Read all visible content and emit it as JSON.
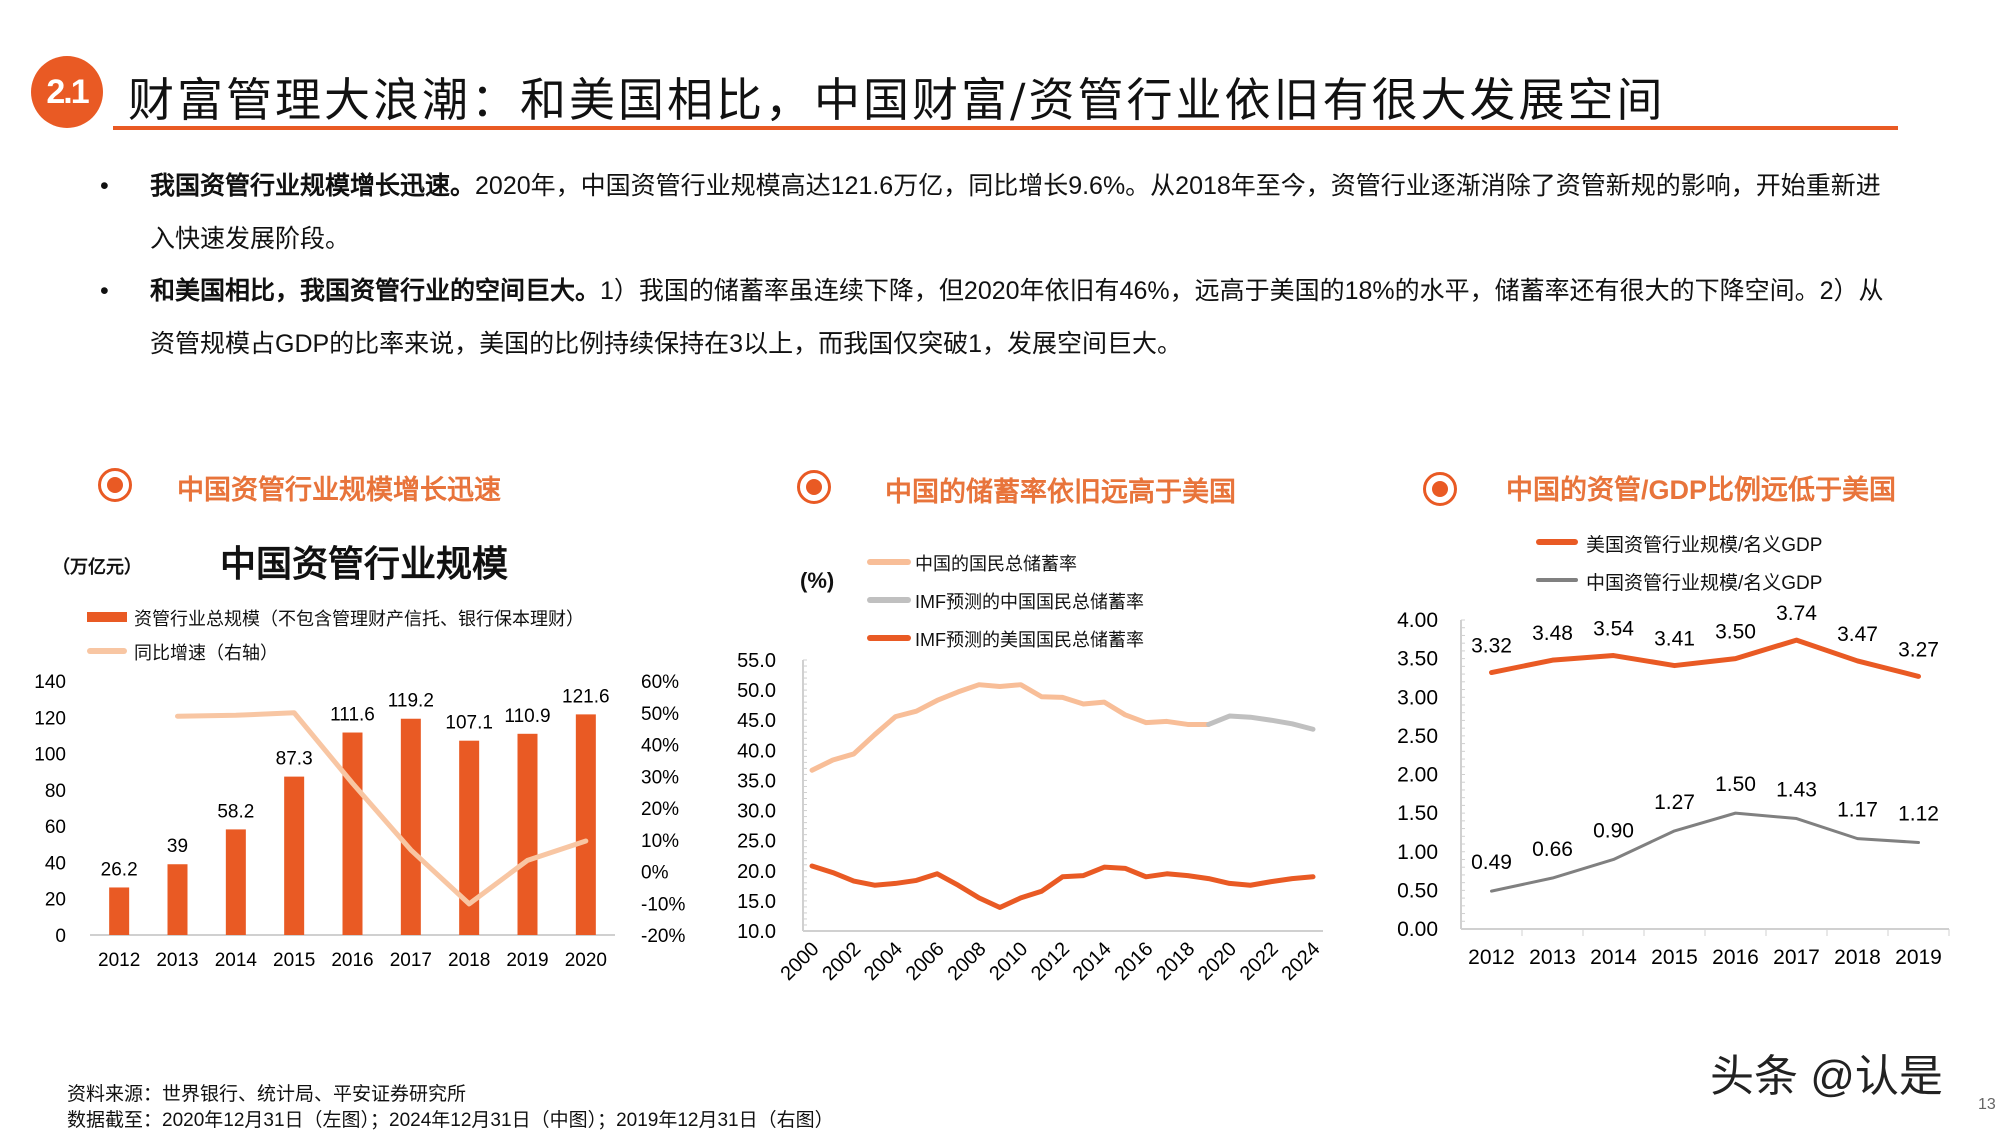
{
  "header": {
    "badge": "2.1",
    "title": "财富管理大浪潮：和美国相比，中国财富/资管行业依旧有很大发展空间"
  },
  "bullets": [
    {
      "bold": "我国资管行业规模增长迅速。",
      "text": "2020年，中国资管行业规模高达121.6万亿，同比增长9.6%。从2018年至今，资管行业逐渐消除了资管新规的影响，开始重新进入快速发展阶段。"
    },
    {
      "bold": "和美国相比，我国资管行业的空间巨大。",
      "text": "1）我国的储蓄率虽连续下降，但2020年依旧有46%，远高于美国的18%的水平，储蓄率还有很大的下降空间。2）从资管规模占GDP的比率来说，美国的比例持续保持在3以上，而我国仅突破1，发展空间巨大。"
    }
  ],
  "bullet_symbol": "•",
  "sections": [
    {
      "title": "中国资管行业规模增长迅速",
      "icon": "target-icon"
    },
    {
      "title": "中国的储蓄率依旧远高于美国",
      "icon": "target-icon"
    },
    {
      "title": "中国的资管/GDP比例远低于美国",
      "icon": "target-icon"
    }
  ],
  "colors": {
    "accent": "#E95A24",
    "peach": "#F8BE98",
    "gray_light": "#C0C0C0",
    "gray_dark": "#808080",
    "section_text": "#E8743B"
  },
  "chart_data": [
    {
      "type": "bar",
      "title": "中国资管行业规模",
      "ylabel": "（万亿元）",
      "categories": [
        "2012",
        "2013",
        "2014",
        "2015",
        "2016",
        "2017",
        "2018",
        "2019",
        "2020"
      ],
      "series": [
        {
          "name": "资管行业总规模（不包含管理财产信托、银行保本理财）",
          "type": "bar",
          "axis": "left",
          "values": [
            26.2,
            39,
            58.2,
            87.3,
            111.6,
            119.2,
            107.1,
            110.9,
            121.6
          ],
          "data_labels": [
            "26.2",
            "39",
            "58.2",
            "87.3",
            "111.6",
            "119.2",
            "107.1",
            "110.9",
            "121.6"
          ],
          "color": "#E95A24"
        },
        {
          "name": "同比增速（右轴）",
          "type": "line",
          "axis": "right",
          "values": [
            null,
            48.9,
            49.2,
            50.0,
            27.8,
            6.8,
            -10.2,
            3.5,
            9.6
          ],
          "color": "#F8C6A3"
        }
      ],
      "ylim": [
        0,
        140
      ],
      "yticks": [
        "0",
        "20",
        "40",
        "60",
        "80",
        "100",
        "120",
        "140"
      ],
      "y2lim": [
        -20,
        60
      ],
      "y2ticks": [
        "-20%",
        "-10%",
        "0%",
        "10%",
        "20%",
        "30%",
        "40%",
        "50%",
        "60%"
      ],
      "legend": "top-left",
      "grid": false
    },
    {
      "type": "line",
      "ylabel": "(%)",
      "x": [
        2000,
        2001,
        2002,
        2003,
        2004,
        2005,
        2006,
        2007,
        2008,
        2009,
        2010,
        2011,
        2012,
        2013,
        2014,
        2015,
        2016,
        2017,
        2018,
        2019,
        2020,
        2021,
        2022,
        2023,
        2024
      ],
      "xticks": [
        "2000",
        "2002",
        "2004",
        "2006",
        "2008",
        "2010",
        "2012",
        "2014",
        "2016",
        "2018",
        "2020",
        "2022",
        "2024"
      ],
      "series": [
        {
          "name": "中国的国民总储蓄率",
          "color": "#F8BE98",
          "values": [
            36.7,
            38.4,
            39.4,
            42.6,
            45.6,
            46.5,
            48.3,
            49.7,
            50.9,
            50.6,
            50.9,
            48.9,
            48.8,
            47.7,
            48.0,
            45.9,
            44.6,
            44.8,
            44.3,
            44.3,
            null,
            null,
            null,
            null,
            null
          ]
        },
        {
          "name": "IMF预测的中国国民总储蓄率",
          "color": "#C0C0C0",
          "values": [
            null,
            null,
            null,
            null,
            null,
            null,
            null,
            null,
            null,
            null,
            null,
            null,
            null,
            null,
            null,
            null,
            null,
            null,
            null,
            44.3,
            45.7,
            45.5,
            45.0,
            44.4,
            43.5
          ]
        },
        {
          "name": "IMF预测的美国国民总储蓄率",
          "color": "#E95A24",
          "values": [
            20.8,
            19.7,
            18.3,
            17.6,
            17.9,
            18.4,
            19.5,
            17.6,
            15.5,
            13.9,
            15.5,
            16.6,
            19.0,
            19.2,
            20.6,
            20.4,
            19.0,
            19.5,
            19.2,
            18.7,
            17.9,
            17.6,
            18.2,
            18.7,
            19.0
          ]
        }
      ],
      "ylim": [
        10,
        55
      ],
      "yticks": [
        "10.0",
        "15.0",
        "20.0",
        "25.0",
        "30.0",
        "35.0",
        "40.0",
        "45.0",
        "50.0",
        "55.0"
      ],
      "legend": "top",
      "grid": false
    },
    {
      "type": "line",
      "categories": [
        "2012",
        "2013",
        "2014",
        "2015",
        "2016",
        "2017",
        "2018",
        "2019"
      ],
      "series": [
        {
          "name": "美国资管行业规模/名义GDP",
          "color": "#E95A24",
          "values": [
            3.32,
            3.48,
            3.54,
            3.41,
            3.5,
            3.74,
            3.47,
            3.27
          ],
          "data_labels": [
            "3.32",
            "3.48",
            "3.54",
            "3.41",
            "3.50",
            "3.74",
            "3.47",
            "3.27"
          ]
        },
        {
          "name": "中国资管行业规模/名义GDP",
          "color": "#808080",
          "values": [
            0.49,
            0.66,
            0.9,
            1.27,
            1.5,
            1.43,
            1.17,
            1.12
          ],
          "data_labels": [
            "0.49",
            "0.66",
            "0.90",
            "1.27",
            "1.50",
            "1.43",
            "1.17",
            "1.12"
          ]
        }
      ],
      "ylim": [
        0,
        4
      ],
      "yticks": [
        "0.00",
        "0.50",
        "1.00",
        "1.50",
        "2.00",
        "2.50",
        "3.00",
        "3.50",
        "4.00"
      ],
      "legend": "top",
      "grid": false
    }
  ],
  "footer": {
    "source": "资料来源：世界银行、统计局、平安证券研究所",
    "cutoff": "数据截至：2020年12月31日（左图）；2024年12月31日（中图）；2019年12月31日（右图）"
  },
  "watermark": "头条 @认是",
  "page_number": "13"
}
